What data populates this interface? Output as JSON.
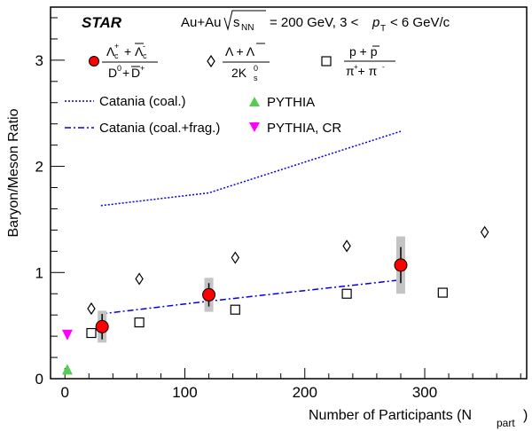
{
  "chart_data": {
    "type": "scatter",
    "title": {
      "experiment": "STAR",
      "system": "Au+Au",
      "energy": "= 200 GeV, 3 <",
      "pt_range": "< 6 GeV/c"
    },
    "xlabel": "Number of Participants (N",
    "xlabel_sub": "part",
    "ylabel": "Baryon/Meson Ratio",
    "xlim": [
      -12,
      385
    ],
    "ylim": [
      0,
      3.5
    ],
    "xticks": [
      0,
      100,
      200,
      300
    ],
    "yticks": [
      0,
      1,
      2,
      3
    ],
    "x_minor_step": 20,
    "y_minor_step": 0.2,
    "grid": false,
    "legend": [
      {
        "label_num": "+",
        "label_den": "+",
        "marker": "circle-red"
      },
      {
        "label_num": "Λ + Λ",
        "label_den": "2K",
        "marker": "diamond-open"
      },
      {
        "label_num": "p + p",
        "label_den": "π + π",
        "marker": "square-open"
      },
      {
        "label": "Catania (coal.)",
        "style": "dotted-blue"
      },
      {
        "label": "Catania (coal.+frag.)",
        "style": "dashdot-blue"
      },
      {
        "label": "PYTHIA",
        "marker": "triangle-up-green"
      },
      {
        "label": "PYTHIA, CR",
        "marker": "triangle-down-magenta"
      }
    ],
    "series": [
      {
        "key": "lambdac_d0",
        "x": [
          31,
          120,
          280
        ],
        "y": [
          0.49,
          0.79,
          1.07
        ],
        "stat_err": [
          0.12,
          0.11,
          0.17
        ],
        "sys_err": [
          0.15,
          0.16,
          0.27
        ],
        "color": "#ff0000"
      },
      {
        "key": "lambda_k0s",
        "x": [
          22,
          62,
          142,
          235,
          350
        ],
        "y": [
          0.66,
          0.94,
          1.14,
          1.25,
          1.38
        ],
        "color": "#000000"
      },
      {
        "key": "p_pi",
        "x": [
          22,
          62,
          142,
          235,
          315
        ],
        "y": [
          0.43,
          0.53,
          0.65,
          0.8,
          0.81
        ],
        "color": "#000000"
      },
      {
        "key": "catania_coal",
        "x": [
          30,
          120,
          280
        ],
        "y": [
          1.63,
          1.75,
          2.33
        ],
        "color": "#0000ee"
      },
      {
        "key": "catania_coal_frag",
        "x": [
          30,
          120,
          280
        ],
        "y": [
          0.61,
          0.73,
          0.93
        ],
        "color": "#0000ee"
      },
      {
        "key": "pythia",
        "x": [
          2
        ],
        "y": [
          0.08
        ],
        "color": "#55cc55"
      },
      {
        "key": "pythia_cr",
        "x": [
          2
        ],
        "y": [
          0.42
        ],
        "color": "#ff00ff"
      }
    ]
  }
}
